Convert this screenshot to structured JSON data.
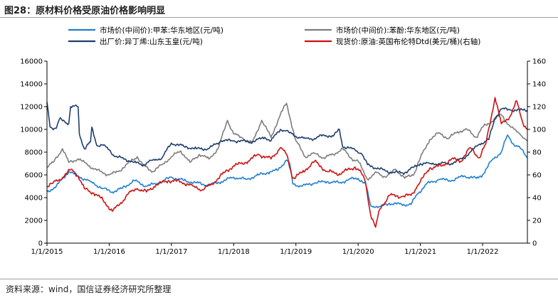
{
  "figure": {
    "title": "图28：原材料价格受原油价格影响明显",
    "source": "资料来源：wind，国信证券经济研究所整理"
  },
  "chart_data": {
    "type": "line",
    "x_tick_labels": [
      "1/1/2015",
      "1/1/2016",
      "1/1/2017",
      "1/1/2018",
      "1/1/2019",
      "1/1/2020",
      "1/1/2021",
      "1/1/2022"
    ],
    "x_range": [
      2015.0,
      2022.72
    ],
    "y_left": {
      "min": 0,
      "max": 16000,
      "ticks": [
        0,
        2000,
        4000,
        6000,
        8000,
        10000,
        12000,
        14000,
        16000
      ]
    },
    "y_right": {
      "min": 0,
      "max": 160,
      "ticks": [
        0,
        20,
        40,
        60,
        80,
        100,
        120,
        140,
        160
      ]
    },
    "grid": false,
    "legend_position": "top",
    "series": [
      {
        "name": "市场价(中间价):甲苯:华东地区(元/吨)",
        "color": "#1f7fd0",
        "axis": "left",
        "width": 1.6,
        "points": [
          [
            2015.0,
            4500
          ],
          [
            2015.15,
            5000
          ],
          [
            2015.35,
            6300
          ],
          [
            2015.5,
            5900
          ],
          [
            2015.7,
            5400
          ],
          [
            2015.9,
            4800
          ],
          [
            2016.05,
            4500
          ],
          [
            2016.2,
            4800
          ],
          [
            2016.4,
            5500
          ],
          [
            2016.6,
            5000
          ],
          [
            2016.8,
            5300
          ],
          [
            2017.0,
            5800
          ],
          [
            2017.2,
            5500
          ],
          [
            2017.4,
            5300
          ],
          [
            2017.6,
            5100
          ],
          [
            2017.8,
            5400
          ],
          [
            2018.0,
            5800
          ],
          [
            2018.2,
            5600
          ],
          [
            2018.4,
            6000
          ],
          [
            2018.55,
            6200
          ],
          [
            2018.7,
            6400
          ],
          [
            2018.85,
            7300
          ],
          [
            2018.9,
            7000
          ],
          [
            2018.95,
            5200
          ],
          [
            2019.1,
            5000
          ],
          [
            2019.3,
            5300
          ],
          [
            2019.5,
            5400
          ],
          [
            2019.7,
            5300
          ],
          [
            2019.85,
            5600
          ],
          [
            2020.0,
            5700
          ],
          [
            2020.12,
            5200
          ],
          [
            2020.2,
            3300
          ],
          [
            2020.35,
            3200
          ],
          [
            2020.5,
            3500
          ],
          [
            2020.7,
            3400
          ],
          [
            2020.85,
            3400
          ],
          [
            2020.95,
            4300
          ],
          [
            2021.1,
            5200
          ],
          [
            2021.3,
            5600
          ],
          [
            2021.5,
            5500
          ],
          [
            2021.7,
            5900
          ],
          [
            2021.9,
            5700
          ],
          [
            2022.0,
            6000
          ],
          [
            2022.15,
            7300
          ],
          [
            2022.3,
            8000
          ],
          [
            2022.4,
            9500
          ],
          [
            2022.5,
            8700
          ],
          [
            2022.6,
            8400
          ],
          [
            2022.72,
            7500
          ]
        ]
      },
      {
        "name": "市场价(中间价):苯酚:华东地区(元/吨)",
        "color": "#7d7d7d",
        "axis": "left",
        "width": 1.6,
        "points": [
          [
            2015.0,
            6700
          ],
          [
            2015.1,
            7100
          ],
          [
            2015.25,
            8300
          ],
          [
            2015.35,
            7100
          ],
          [
            2015.5,
            7400
          ],
          [
            2015.65,
            6900
          ],
          [
            2015.8,
            6400
          ],
          [
            2016.0,
            6000
          ],
          [
            2016.15,
            6300
          ],
          [
            2016.3,
            7000
          ],
          [
            2016.45,
            7600
          ],
          [
            2016.55,
            6800
          ],
          [
            2016.7,
            6300
          ],
          [
            2016.85,
            6900
          ],
          [
            2017.0,
            7600
          ],
          [
            2017.15,
            8100
          ],
          [
            2017.3,
            7100
          ],
          [
            2017.45,
            7800
          ],
          [
            2017.6,
            7400
          ],
          [
            2017.75,
            8300
          ],
          [
            2017.9,
            10800
          ],
          [
            2018.0,
            9600
          ],
          [
            2018.15,
            9200
          ],
          [
            2018.3,
            8800
          ],
          [
            2018.45,
            10800
          ],
          [
            2018.6,
            9300
          ],
          [
            2018.75,
            11300
          ],
          [
            2018.85,
            12300
          ],
          [
            2018.92,
            10700
          ],
          [
            2019.0,
            9000
          ],
          [
            2019.15,
            7600
          ],
          [
            2019.3,
            7900
          ],
          [
            2019.45,
            7500
          ],
          [
            2019.6,
            7800
          ],
          [
            2019.75,
            8300
          ],
          [
            2019.9,
            7400
          ],
          [
            2020.0,
            7200
          ],
          [
            2020.15,
            5600
          ],
          [
            2020.3,
            6200
          ],
          [
            2020.45,
            5800
          ],
          [
            2020.6,
            6500
          ],
          [
            2020.75,
            5700
          ],
          [
            2020.9,
            6100
          ],
          [
            2021.0,
            7500
          ],
          [
            2021.15,
            9100
          ],
          [
            2021.3,
            9700
          ],
          [
            2021.45,
            9200
          ],
          [
            2021.6,
            9800
          ],
          [
            2021.75,
            10000
          ],
          [
            2021.9,
            9300
          ],
          [
            2022.0,
            10200
          ],
          [
            2022.15,
            10700
          ],
          [
            2022.3,
            11300
          ],
          [
            2022.45,
            10200
          ],
          [
            2022.6,
            9600
          ],
          [
            2022.72,
            9000
          ]
        ]
      },
      {
        "name": "出厂价:异丁烯:山东玉皇(元/吨)",
        "color": "#1e3e6e",
        "axis": "left",
        "width": 1.6,
        "points": [
          [
            2015.0,
            12400
          ],
          [
            2015.05,
            10200
          ],
          [
            2015.15,
            10100
          ],
          [
            2015.2,
            10900
          ],
          [
            2015.35,
            10500
          ],
          [
            2015.38,
            12000
          ],
          [
            2015.5,
            12000
          ],
          [
            2015.52,
            9600
          ],
          [
            2015.6,
            8300
          ],
          [
            2015.7,
            8900
          ],
          [
            2015.72,
            10200
          ],
          [
            2015.8,
            8600
          ],
          [
            2015.9,
            8600
          ],
          [
            2016.0,
            8200
          ],
          [
            2016.1,
            7600
          ],
          [
            2016.25,
            7400
          ],
          [
            2016.4,
            7100
          ],
          [
            2016.55,
            6900
          ],
          [
            2016.7,
            7300
          ],
          [
            2016.85,
            7500
          ],
          [
            2017.0,
            8800
          ],
          [
            2017.2,
            8500
          ],
          [
            2017.4,
            8300
          ],
          [
            2017.6,
            8300
          ],
          [
            2017.8,
            9000
          ],
          [
            2018.0,
            9000
          ],
          [
            2018.3,
            8900
          ],
          [
            2018.5,
            9300
          ],
          [
            2018.6,
            9000
          ],
          [
            2018.75,
            10000
          ],
          [
            2018.85,
            9900
          ],
          [
            2018.9,
            9700
          ],
          [
            2019.0,
            9400
          ],
          [
            2019.15,
            9200
          ],
          [
            2019.3,
            9200
          ],
          [
            2019.45,
            9500
          ],
          [
            2019.6,
            9400
          ],
          [
            2019.7,
            10000
          ],
          [
            2019.75,
            8500
          ],
          [
            2019.95,
            8200
          ],
          [
            2020.05,
            7900
          ],
          [
            2020.15,
            6900
          ],
          [
            2020.35,
            6500
          ],
          [
            2020.55,
            6200
          ],
          [
            2020.75,
            6200
          ],
          [
            2020.9,
            6700
          ],
          [
            2021.0,
            7000
          ],
          [
            2021.15,
            7000
          ],
          [
            2021.3,
            7000
          ],
          [
            2021.5,
            7000
          ],
          [
            2021.7,
            7500
          ],
          [
            2021.8,
            8000
          ],
          [
            2021.95,
            8700
          ],
          [
            2022.1,
            9100
          ],
          [
            2022.2,
            11000
          ],
          [
            2022.3,
            11800
          ],
          [
            2022.45,
            11700
          ],
          [
            2022.6,
            11700
          ],
          [
            2022.72,
            11700
          ]
        ]
      },
      {
        "name": "现货价:原油:英国布伦特Dtd(美元/桶)(右轴)",
        "color": "#cc1111",
        "axis": "right",
        "width": 1.6,
        "points": [
          [
            2015.0,
            50
          ],
          [
            2015.1,
            53
          ],
          [
            2015.2,
            56
          ],
          [
            2015.4,
            65
          ],
          [
            2015.5,
            59
          ],
          [
            2015.6,
            48
          ],
          [
            2015.75,
            44
          ],
          [
            2015.9,
            38
          ],
          [
            2016.05,
            28
          ],
          [
            2016.15,
            33
          ],
          [
            2016.3,
            43
          ],
          [
            2016.45,
            48
          ],
          [
            2016.6,
            45
          ],
          [
            2016.75,
            51
          ],
          [
            2016.95,
            55
          ],
          [
            2017.15,
            54
          ],
          [
            2017.35,
            50
          ],
          [
            2017.5,
            47
          ],
          [
            2017.65,
            52
          ],
          [
            2017.85,
            62
          ],
          [
            2018.0,
            68
          ],
          [
            2018.2,
            71
          ],
          [
            2018.4,
            78
          ],
          [
            2018.6,
            74
          ],
          [
            2018.75,
            84
          ],
          [
            2018.85,
            78
          ],
          [
            2018.95,
            57
          ],
          [
            2019.1,
            62
          ],
          [
            2019.3,
            72
          ],
          [
            2019.5,
            63
          ],
          [
            2019.7,
            61
          ],
          [
            2019.95,
            67
          ],
          [
            2020.05,
            62
          ],
          [
            2020.12,
            53
          ],
          [
            2020.2,
            25
          ],
          [
            2020.28,
            14
          ],
          [
            2020.35,
            30
          ],
          [
            2020.5,
            42
          ],
          [
            2020.7,
            41
          ],
          [
            2020.85,
            42
          ],
          [
            2020.95,
            50
          ],
          [
            2021.15,
            66
          ],
          [
            2021.35,
            68
          ],
          [
            2021.5,
            74
          ],
          [
            2021.65,
            72
          ],
          [
            2021.8,
            84
          ],
          [
            2021.95,
            75
          ],
          [
            2022.05,
            87
          ],
          [
            2022.2,
            128
          ],
          [
            2022.3,
            105
          ],
          [
            2022.45,
            112
          ],
          [
            2022.55,
            125
          ],
          [
            2022.65,
            105
          ],
          [
            2022.72,
            100
          ]
        ]
      }
    ]
  }
}
